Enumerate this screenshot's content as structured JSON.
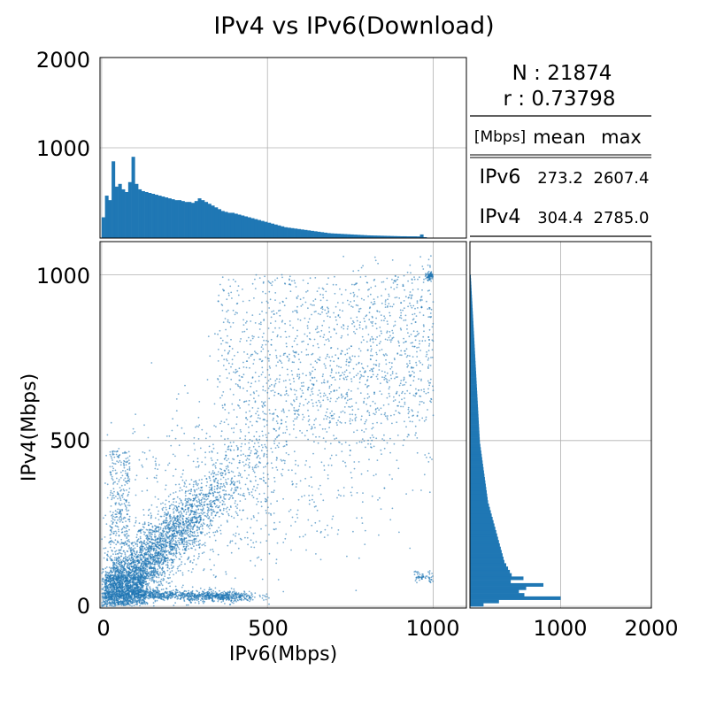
{
  "chart_data": {
    "title": "IPv4 vs IPv6(Download)",
    "scatter": {
      "type": "scatter",
      "xlabel": "IPv6(Mbps)",
      "ylabel": "IPv4(Mbps)",
      "xlim": [
        -5,
        1100
      ],
      "ylim": [
        -5,
        1100
      ],
      "xticks": [
        0,
        500,
        1000
      ],
      "yticks": [
        0,
        500,
        1000
      ],
      "grid": true,
      "color": "#1f77b4",
      "n_points": 21874,
      "correlation": 0.73798
    },
    "top_histogram": {
      "type": "bar",
      "variable": "IPv6(Mbps)",
      "xlim": [
        -5,
        1100
      ],
      "ylim": [
        0,
        2000
      ],
      "yticks": [
        1000,
        2000
      ],
      "grid": true,
      "color": "#1f77b4",
      "bin_width": 10,
      "bin_start": 0,
      "counts": [
        230,
        470,
        420,
        850,
        570,
        600,
        540,
        510,
        620,
        900,
        600,
        540,
        520,
        510,
        500,
        490,
        480,
        470,
        460,
        450,
        440,
        430,
        420,
        420,
        410,
        400,
        400,
        390,
        410,
        440,
        420,
        400,
        380,
        360,
        340,
        320,
        300,
        290,
        280,
        280,
        270,
        260,
        250,
        240,
        230,
        220,
        210,
        200,
        190,
        180,
        170,
        160,
        150,
        140,
        130,
        120,
        115,
        110,
        105,
        100,
        95,
        90,
        85,
        80,
        75,
        70,
        65,
        60,
        55,
        52,
        50,
        48,
        46,
        44,
        42,
        40,
        38,
        36,
        34,
        32,
        30,
        29,
        28,
        27,
        26,
        25,
        24,
        23,
        22,
        21,
        20,
        20,
        19,
        19,
        19,
        18,
        40,
        10
      ]
    },
    "right_histogram": {
      "type": "bar",
      "orientation": "horizontal",
      "variable": "IPv4(Mbps)",
      "ylim": [
        -5,
        1100
      ],
      "xlim": [
        0,
        2000
      ],
      "xticks": [
        1000,
        2000
      ],
      "grid": true,
      "color": "#1f77b4",
      "bin_width": 10,
      "bin_start": 0,
      "counts": [
        150,
        320,
        1000,
        600,
        540,
        620,
        810,
        450,
        590,
        460,
        440,
        420,
        400,
        380,
        370,
        360,
        350,
        340,
        330,
        320,
        310,
        300,
        290,
        280,
        270,
        260,
        250,
        240,
        230,
        220,
        210,
        200,
        195,
        190,
        185,
        180,
        175,
        170,
        165,
        160,
        155,
        150,
        145,
        140,
        135,
        130,
        125,
        120,
        115,
        110,
        108,
        106,
        104,
        102,
        100,
        98,
        96,
        94,
        92,
        90,
        88,
        86,
        84,
        82,
        80,
        78,
        76,
        74,
        72,
        70,
        68,
        66,
        64,
        62,
        60,
        58,
        56,
        54,
        52,
        50,
        48,
        46,
        44,
        42,
        40,
        38,
        36,
        34,
        32,
        30,
        28,
        26,
        24,
        22,
        20,
        18,
        16,
        14,
        12,
        10
      ]
    },
    "stats_table": {
      "n_label": "N : 21874",
      "r_label": "r : 0.73798",
      "header_unit": "[Mbps]",
      "header_mean": "mean",
      "header_max": "max",
      "rows": [
        {
          "name": "IPv6",
          "mean": "273.2",
          "max": "2607.4"
        },
        {
          "name": "IPv4",
          "mean": "304.4",
          "max": "2785.0"
        }
      ]
    },
    "tick_labels": {
      "top_hist_y": [
        "2000",
        "1000"
      ],
      "scatter_y": [
        "1000",
        "500",
        "0"
      ],
      "scatter_x": [
        "0",
        "500",
        "1000"
      ],
      "right_hist_x": [
        "1000",
        "2000"
      ]
    }
  }
}
